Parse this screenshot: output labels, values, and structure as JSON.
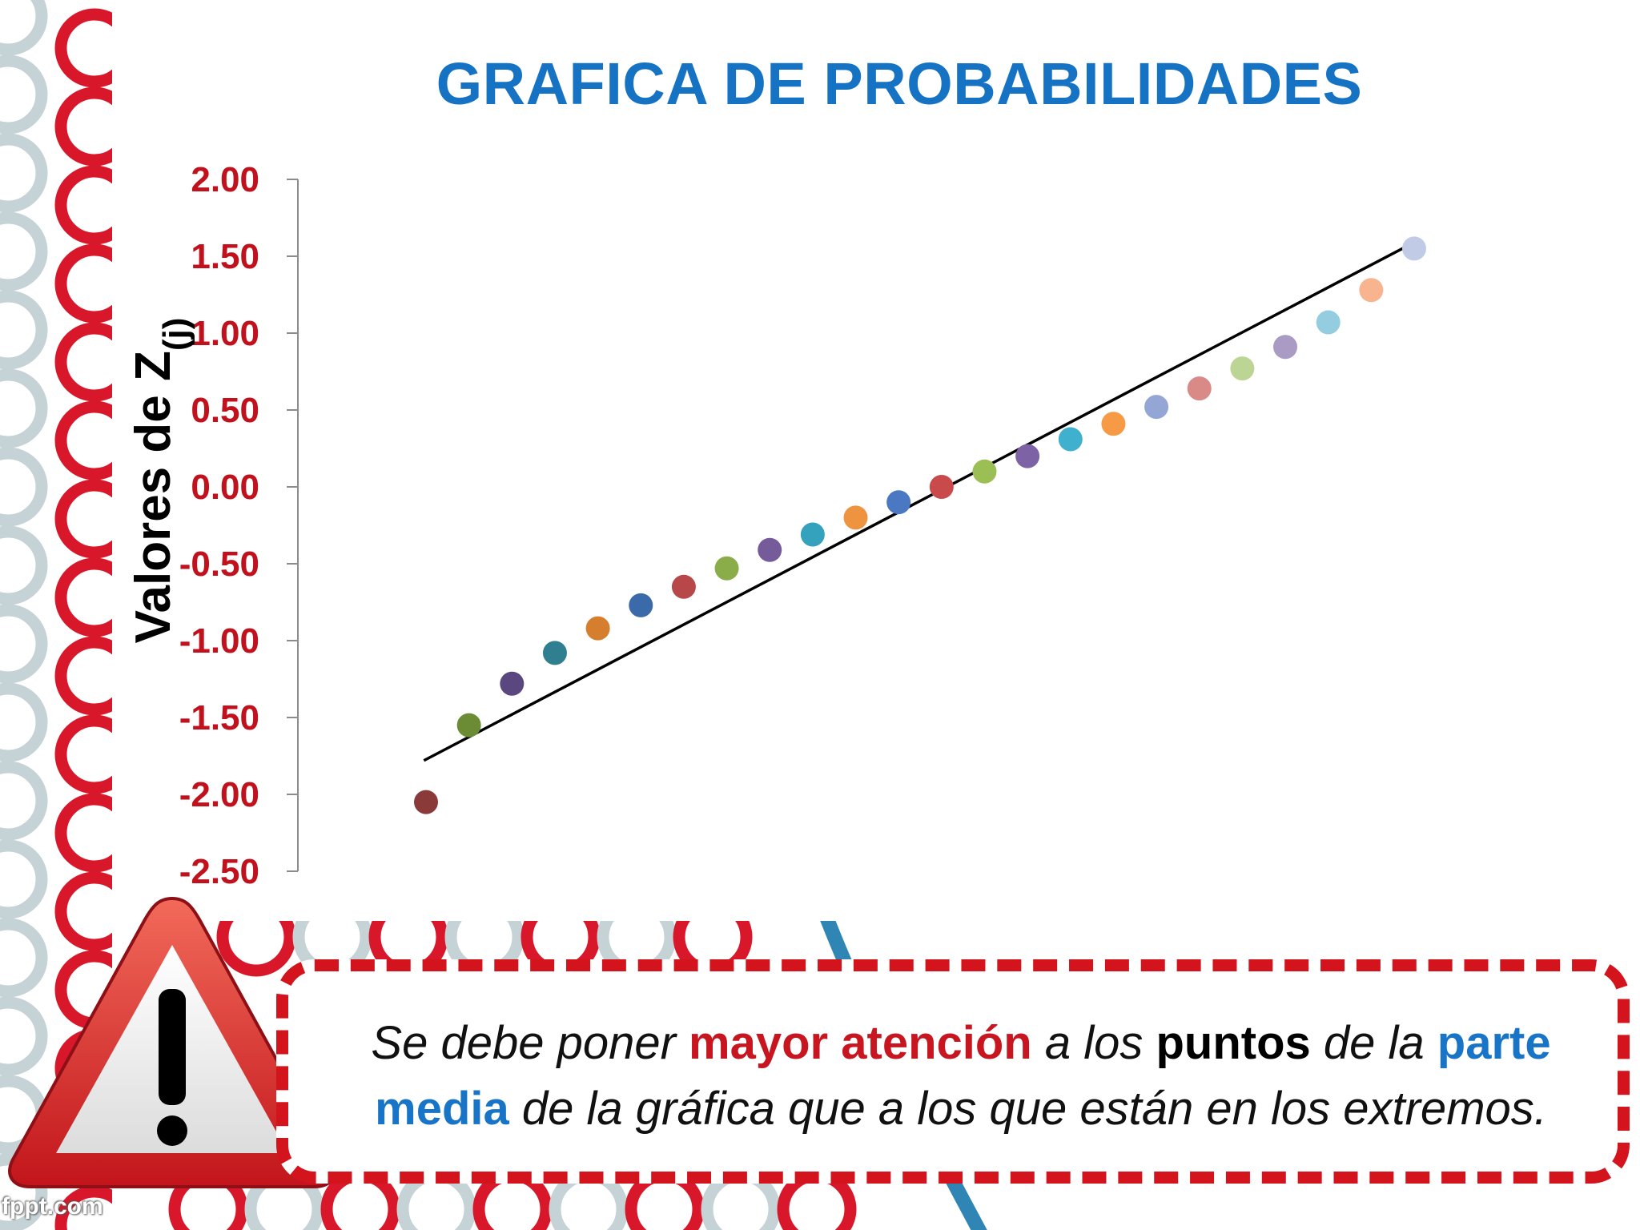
{
  "slide": {
    "title": "GRAFICA DE PROBABILIDADES",
    "watermark": "fppt.com"
  },
  "colors": {
    "title_blue": "#1673c4",
    "tick_red": "#c0111d",
    "callout_border_red": "#d4141d",
    "ring_red": "#d8182a",
    "ring_gray": "#c5d2d6"
  },
  "icons": {
    "warning": "warning-triangle-icon"
  },
  "callout": {
    "segments": [
      {
        "text": "Se debe poner ",
        "style": "it"
      },
      {
        "text": "mayor atención",
        "style": "red"
      },
      {
        "text": " a los ",
        "style": "it"
      },
      {
        "text": "puntos",
        "style": "blk"
      },
      {
        "text": " de la ",
        "style": "it"
      },
      {
        "text": "parte media",
        "style": "blu"
      },
      {
        "text": " de la gráfica que a los que están en los extremos.",
        "style": "it"
      }
    ]
  },
  "chart_data": {
    "type": "scatter",
    "title": "",
    "xlabel": "",
    "ylabel": "Valores de Z",
    "ylabel_subscript": "(j)",
    "ylim": [
      -2.5,
      2.0
    ],
    "yticks": [
      "2.00",
      "1.50",
      "1.00",
      "0.50",
      "0.00",
      "-0.50",
      "-1.00",
      "-1.50",
      "-2.00",
      "-2.50"
    ],
    "ytick_values": [
      2.0,
      1.5,
      1.0,
      0.5,
      0.0,
      -0.5,
      -1.0,
      -1.5,
      -2.0,
      -2.5
    ],
    "grid": false,
    "legend": "none",
    "points": [
      {
        "x": 1,
        "y": -2.05,
        "color": "#8b3a3a"
      },
      {
        "x": 2,
        "y": -1.55,
        "color": "#6b8b35"
      },
      {
        "x": 3,
        "y": -1.28,
        "color": "#5a4780"
      },
      {
        "x": 4,
        "y": -1.08,
        "color": "#2f7f90"
      },
      {
        "x": 5,
        "y": -0.92,
        "color": "#d57f2e"
      },
      {
        "x": 6,
        "y": -0.77,
        "color": "#3b6aab"
      },
      {
        "x": 7,
        "y": -0.65,
        "color": "#b8474a"
      },
      {
        "x": 8,
        "y": -0.53,
        "color": "#8aad4a"
      },
      {
        "x": 9,
        "y": -0.41,
        "color": "#765b9a"
      },
      {
        "x": 10,
        "y": -0.31,
        "color": "#34a1bd"
      },
      {
        "x": 11,
        "y": -0.2,
        "color": "#ee9440"
      },
      {
        "x": 12,
        "y": -0.1,
        "color": "#4a78c2"
      },
      {
        "x": 13,
        "y": 0.0,
        "color": "#c84a4a"
      },
      {
        "x": 14,
        "y": 0.1,
        "color": "#9cbf55"
      },
      {
        "x": 15,
        "y": 0.2,
        "color": "#7e62a6"
      },
      {
        "x": 16,
        "y": 0.31,
        "color": "#3fb0cd"
      },
      {
        "x": 17,
        "y": 0.41,
        "color": "#f69a45"
      },
      {
        "x": 18,
        "y": 0.52,
        "color": "#93a6d6"
      },
      {
        "x": 19,
        "y": 0.64,
        "color": "#d98a86"
      },
      {
        "x": 20,
        "y": 0.77,
        "color": "#bdd594"
      },
      {
        "x": 21,
        "y": 0.91,
        "color": "#a99bc4"
      },
      {
        "x": 22,
        "y": 1.07,
        "color": "#94cde0"
      },
      {
        "x": 23,
        "y": 1.28,
        "color": "#f8b48e"
      },
      {
        "x": 24,
        "y": 1.55,
        "color": "#c2cbe6"
      }
    ],
    "trendline": {
      "x": [
        0,
        24
      ],
      "y": [
        -1.78,
        1.59
      ],
      "color": "#000000"
    }
  }
}
